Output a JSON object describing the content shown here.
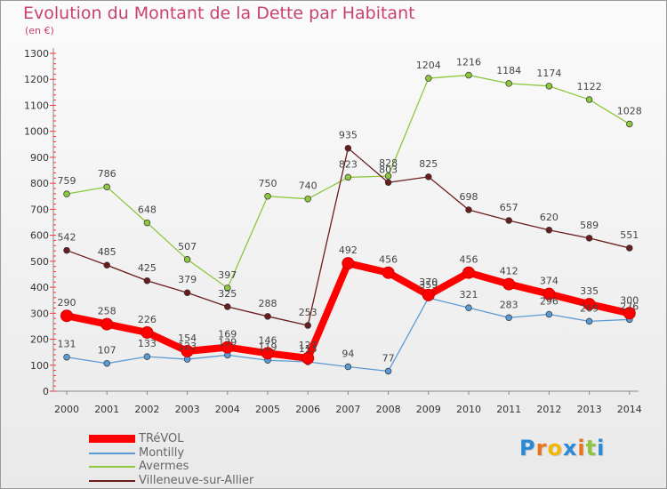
{
  "chart_data": {
    "type": "line",
    "title": "Evolution du Montant de la Dette par Habitant",
    "subtitle": "(en €)",
    "x": [
      "2000",
      "2001",
      "2002",
      "2003",
      "2004",
      "2005",
      "2006",
      "2007",
      "2008",
      "2009",
      "2010",
      "2011",
      "2012",
      "2013",
      "2014"
    ],
    "ylim": [
      0,
      1300
    ],
    "yticks": [
      0,
      100,
      200,
      300,
      400,
      500,
      600,
      700,
      800,
      900,
      1000,
      1100,
      1200,
      1300
    ],
    "grid": false,
    "legend_position": "bottom-left",
    "series": [
      {
        "name": "TRéVOL",
        "color": "#ff0000",
        "values": [
          290,
          258,
          226,
          154,
          169,
          146,
          127,
          492,
          456,
          370,
          456,
          412,
          374,
          335,
          300
        ]
      },
      {
        "name": "Montilly",
        "color": "#5b9bd5",
        "values": [
          131,
          107,
          133,
          123,
          139,
          119,
          113,
          94,
          77,
          359,
          321,
          283,
          296,
          269,
          276
        ]
      },
      {
        "name": "Avermes",
        "color": "#8dc63f",
        "values": [
          759,
          786,
          648,
          507,
          397,
          750,
          740,
          823,
          828,
          1204,
          1216,
          1184,
          1174,
          1122,
          1028
        ]
      },
      {
        "name": "Villeneuve-sur-Allier",
        "color": "#6b1d1d",
        "values": [
          542,
          485,
          425,
          379,
          325,
          288,
          253,
          935,
          803,
          825,
          698,
          657,
          620,
          589,
          551
        ]
      }
    ]
  },
  "logo": {
    "letters": [
      "P",
      "r",
      "o",
      "x",
      "i",
      "t",
      "i"
    ],
    "colors": [
      "#2b8ad6",
      "#e8731b",
      "#f2b705",
      "#2b8ad6",
      "#e8731b",
      "#8dc63f",
      "#2b8ad6"
    ]
  }
}
